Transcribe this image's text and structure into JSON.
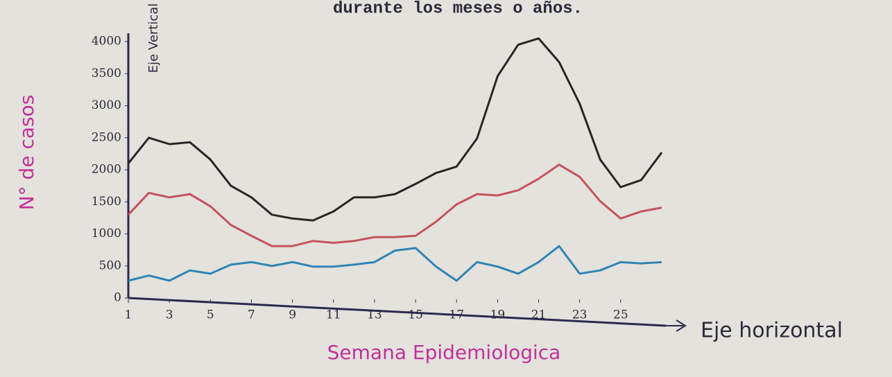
{
  "chart_data": {
    "type": "line",
    "title": "durante los meses o años.",
    "y_label": "N° de casos",
    "y_axis_name": "Eje Vertical",
    "x_label": "Semana Epidemiologica",
    "x_axis_name": "Eje horizontal",
    "x": [
      1,
      2,
      3,
      4,
      5,
      6,
      7,
      8,
      9,
      10,
      11,
      12,
      13,
      14,
      15,
      16,
      17,
      18,
      19,
      20,
      21,
      22,
      23,
      24,
      25,
      26,
      27
    ],
    "series": [
      {
        "color": "#262626",
        "values": [
          2100,
          2500,
          2400,
          2430,
          2160,
          1750,
          1570,
          1300,
          1240,
          1210,
          1350,
          1570,
          1570,
          1620,
          1780,
          1950,
          2050,
          2490,
          3460,
          3950,
          4050,
          3680,
          3030,
          2160,
          1730,
          1840,
          2270
        ]
      },
      {
        "color": "#c4525c",
        "values": [
          1300,
          1640,
          1570,
          1620,
          1430,
          1140,
          970,
          810,
          810,
          890,
          860,
          890,
          950,
          950,
          970,
          1190,
          1460,
          1620,
          1600,
          1680,
          1860,
          2080,
          1890,
          1510,
          1240,
          1350,
          1410
        ]
      },
      {
        "color": "#2f84b4",
        "values": [
          270,
          350,
          270,
          430,
          380,
          520,
          560,
          500,
          560,
          490,
          490,
          520,
          560,
          740,
          780,
          490,
          270,
          560,
          490,
          380,
          560,
          810,
          380,
          430,
          560,
          540,
          560
        ]
      }
    ],
    "xlim": [
      1,
      27
    ],
    "ylim": [
      0,
      4100
    ],
    "xticks": [
      1,
      3,
      5,
      7,
      9,
      11,
      13,
      15,
      17,
      19,
      21,
      23,
      25
    ],
    "yticks": [
      0,
      500,
      1000,
      1500,
      2000,
      2500,
      3000,
      3500,
      4000
    ],
    "grid": false
  }
}
